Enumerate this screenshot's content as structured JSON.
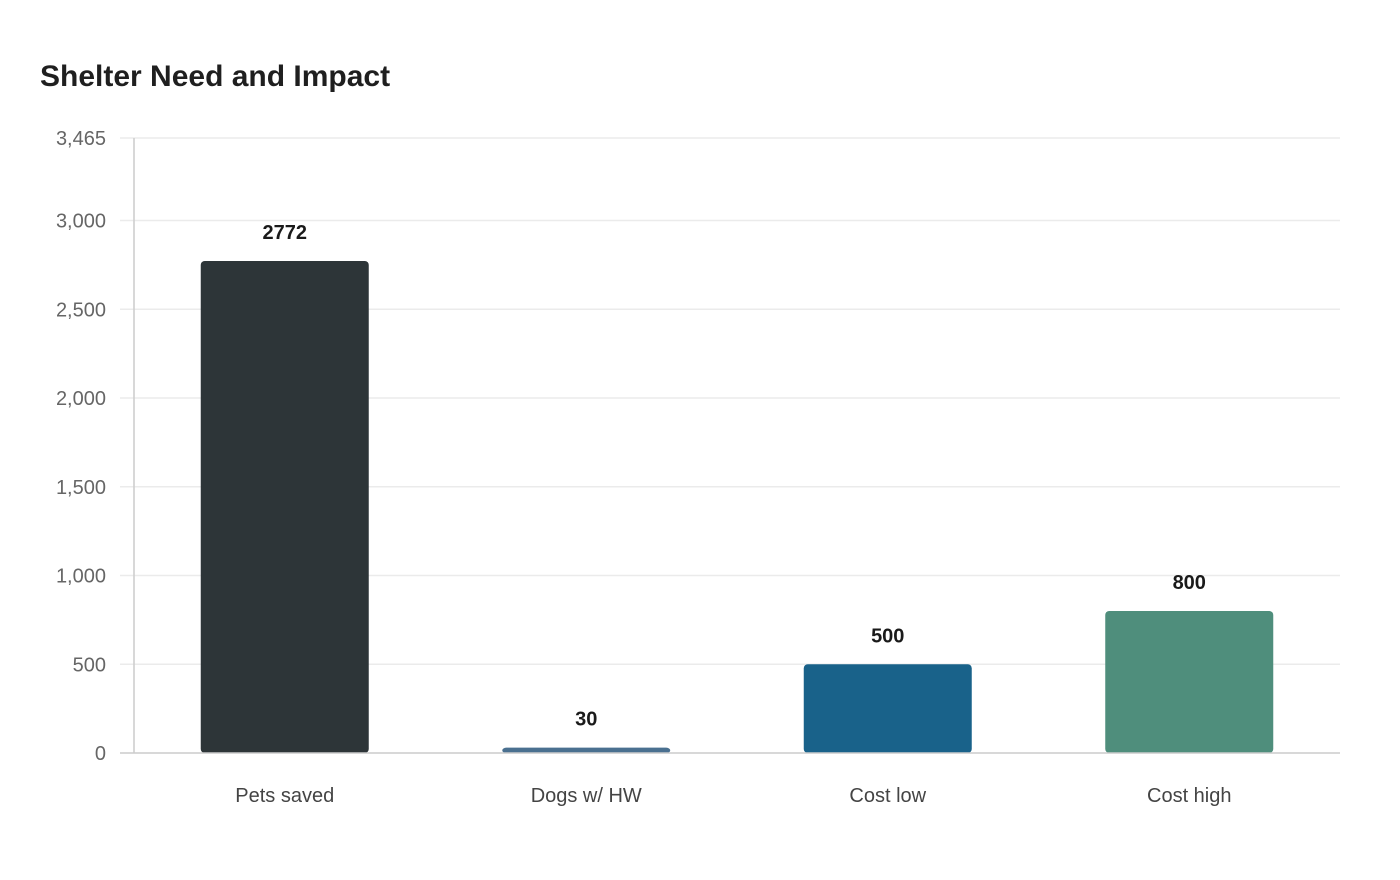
{
  "chart_data": {
    "type": "bar",
    "title": "Shelter Need and Impact",
    "categories": [
      "Pets saved",
      "Dogs w/ HW",
      "Cost low",
      "Cost high"
    ],
    "values": [
      2772,
      30,
      500,
      800
    ],
    "data_labels": [
      "2772",
      "30",
      "500",
      "800"
    ],
    "colors": [
      "#2d3538",
      "#4a7090",
      "#19628a",
      "#4f8e7c"
    ],
    "yticks": [
      0,
      500,
      1000,
      1500,
      2000,
      2500,
      3000,
      3465
    ],
    "ytick_labels": [
      "0",
      "500",
      "1,000",
      "1,500",
      "2,000",
      "2,500",
      "3,000",
      "3,465"
    ],
    "ylim": [
      0,
      3465
    ],
    "grid": true,
    "gridline_color": "#ebebeb",
    "axis_color": "#cccccc"
  }
}
